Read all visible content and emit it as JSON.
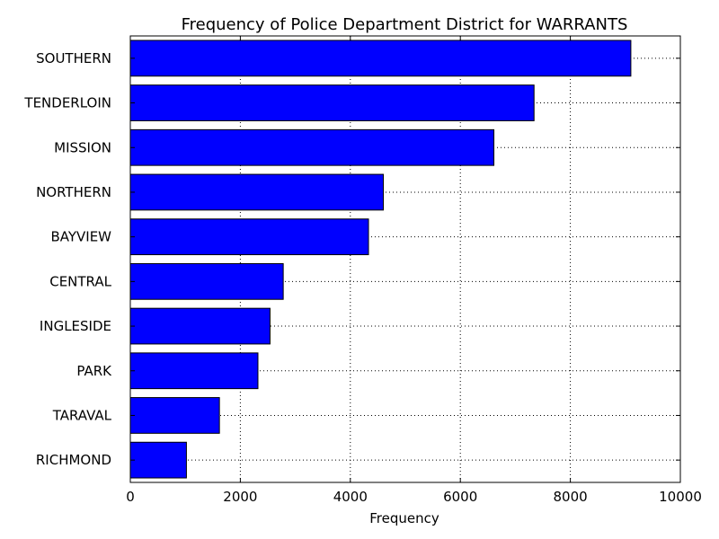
{
  "chart_data": {
    "type": "bar",
    "orientation": "horizontal",
    "title": "Frequency of Police Department District for WARRANTS",
    "xlabel": "Frequency",
    "ylabel": "",
    "categories": [
      "SOUTHERN",
      "TENDERLOIN",
      "MISSION",
      "NORTHERN",
      "BAYVIEW",
      "CENTRAL",
      "INGLESIDE",
      "PARK",
      "TARAVAL",
      "RICHMOND"
    ],
    "values": [
      9100,
      7340,
      6610,
      4600,
      4330,
      2780,
      2540,
      2320,
      1620,
      1020
    ],
    "xlim": [
      0,
      10000
    ],
    "xticks": [
      0,
      2000,
      4000,
      6000,
      8000,
      10000
    ],
    "xtick_labels": [
      "0",
      "2000",
      "4000",
      "6000",
      "8000",
      "10000"
    ],
    "grid": true,
    "bar_color": "#0000ff",
    "bar_edge_color": "#000000"
  }
}
